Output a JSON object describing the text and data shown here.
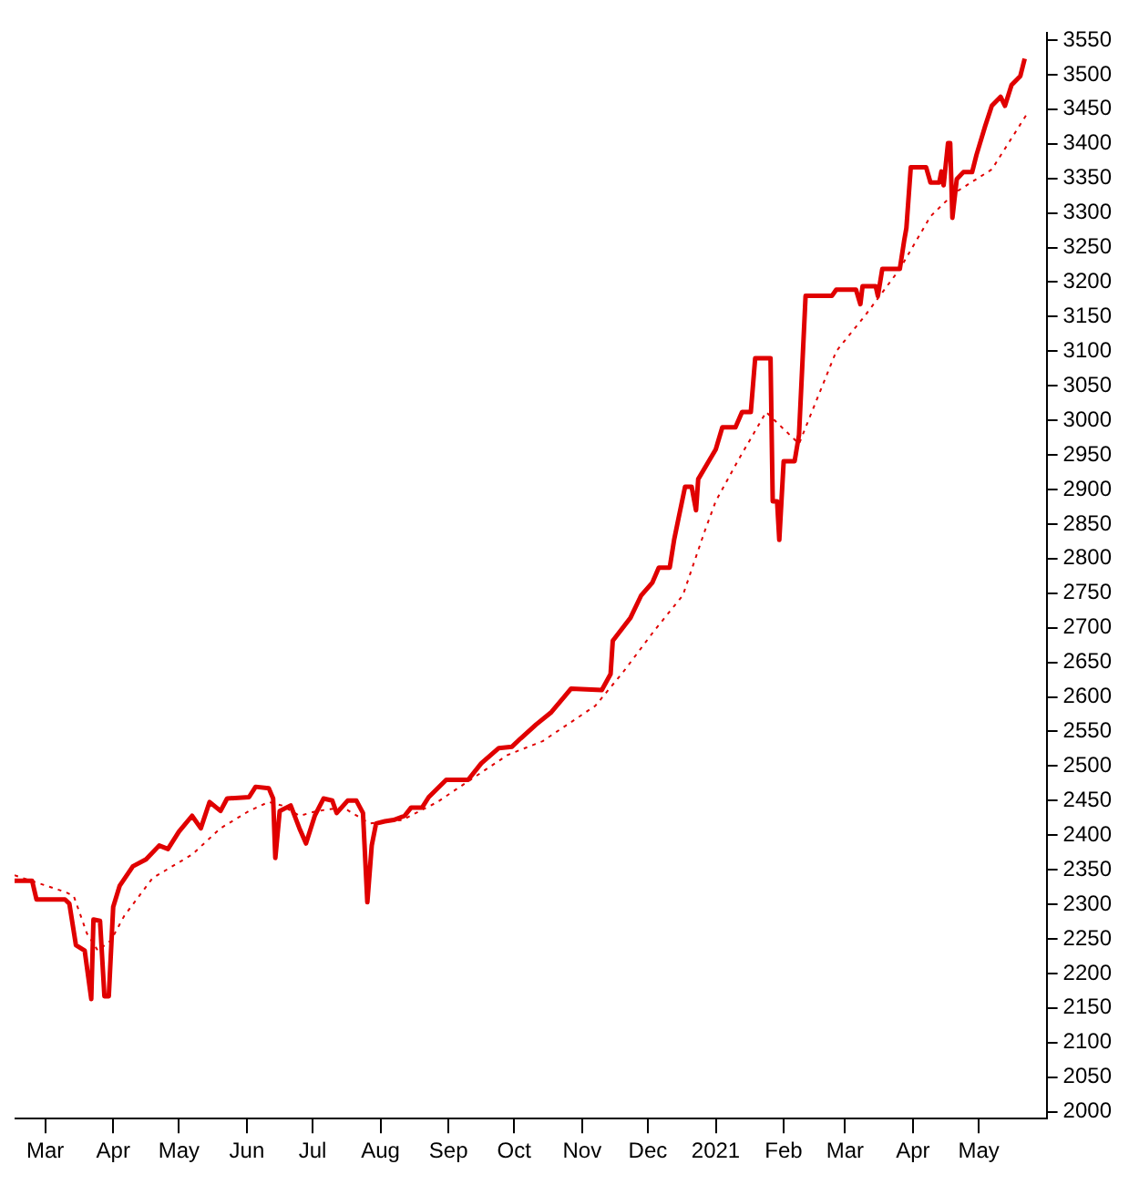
{
  "chart_data": {
    "type": "line",
    "xlim": [
      "2020-02-16",
      "2021-06-01"
    ],
    "xticks": [
      {
        "value": "2020-03-01",
        "label": "Mar"
      },
      {
        "value": "2020-04-01",
        "label": "Apr"
      },
      {
        "value": "2020-05-01",
        "label": "May"
      },
      {
        "value": "2020-06-01",
        "label": "Jun"
      },
      {
        "value": "2020-07-01",
        "label": "Jul"
      },
      {
        "value": "2020-08-01",
        "label": "Aug"
      },
      {
        "value": "2020-09-01",
        "label": "Sep"
      },
      {
        "value": "2020-10-01",
        "label": "Oct"
      },
      {
        "value": "2020-11-01",
        "label": "Nov"
      },
      {
        "value": "2020-12-01",
        "label": "Dec"
      },
      {
        "value": "2021-01-01",
        "label": "2021"
      },
      {
        "value": "2021-02-01",
        "label": "Feb"
      },
      {
        "value": "2021-03-01",
        "label": "Mar"
      },
      {
        "value": "2021-04-01",
        "label": "Apr"
      },
      {
        "value": "2021-05-01",
        "label": "May"
      }
    ],
    "ylim": [
      1990,
      3560
    ],
    "yticks": [
      2000,
      2050,
      2100,
      2150,
      2200,
      2250,
      2300,
      2350,
      2400,
      2450,
      2500,
      2550,
      2600,
      2650,
      2700,
      2750,
      2800,
      2850,
      2900,
      2950,
      3000,
      3050,
      3100,
      3150,
      3200,
      3250,
      3300,
      3350,
      3400,
      3450,
      3500,
      3550
    ],
    "grid": false,
    "legend": false,
    "series": [
      {
        "color": "#e00000",
        "line_style": "solid",
        "x": [
          "2020-02-16",
          "2020-02-24",
          "2020-02-26",
          "2020-03-10",
          "2020-03-12",
          "2020-03-15",
          "2020-03-19",
          "2020-03-22",
          "2020-03-23",
          "2020-03-26",
          "2020-03-28",
          "2020-03-30",
          "2020-04-01",
          "2020-04-04",
          "2020-04-10",
          "2020-04-16",
          "2020-04-22",
          "2020-04-26",
          "2020-05-01",
          "2020-05-07",
          "2020-05-11",
          "2020-05-15",
          "2020-05-20",
          "2020-05-23",
          "2020-06-02",
          "2020-06-05",
          "2020-06-11",
          "2020-06-13",
          "2020-06-14",
          "2020-06-16",
          "2020-06-21",
          "2020-06-25",
          "2020-06-28",
          "2020-07-02",
          "2020-07-06",
          "2020-07-10",
          "2020-07-12",
          "2020-07-17",
          "2020-07-21",
          "2020-07-24",
          "2020-07-26",
          "2020-07-28",
          "2020-07-30",
          "2020-08-03",
          "2020-08-07",
          "2020-08-12",
          "2020-08-15",
          "2020-08-20",
          "2020-08-23",
          "2020-08-31",
          "2020-09-10",
          "2020-09-16",
          "2020-09-24",
          "2020-09-30",
          "2020-10-04",
          "2020-10-11",
          "2020-10-18",
          "2020-10-27",
          "2020-11-10",
          "2020-11-14",
          "2020-11-15",
          "2020-11-23",
          "2020-11-28",
          "2020-12-03",
          "2020-12-06",
          "2020-12-11",
          "2020-12-13",
          "2020-12-15",
          "2020-12-18",
          "2020-12-21",
          "2020-12-23",
          "2020-12-24",
          "2021-01-01",
          "2021-01-04",
          "2021-01-10",
          "2021-01-13",
          "2021-01-17",
          "2021-01-19",
          "2021-01-26",
          "2021-01-27",
          "2021-01-29",
          "2021-01-30",
          "2021-02-01",
          "2021-02-06",
          "2021-02-08",
          "2021-02-11",
          "2021-02-23",
          "2021-02-25",
          "2021-03-06",
          "2021-03-08",
          "2021-03-09",
          "2021-03-15",
          "2021-03-16",
          "2021-03-18",
          "2021-03-26",
          "2021-03-28",
          "2021-03-29",
          "2021-03-31",
          "2021-04-07",
          "2021-04-09",
          "2021-04-13",
          "2021-04-14",
          "2021-04-15",
          "2021-04-17",
          "2021-04-18",
          "2021-04-19",
          "2021-04-21",
          "2021-04-24",
          "2021-04-28",
          "2021-04-30",
          "2021-05-04",
          "2021-05-07",
          "2021-05-11",
          "2021-05-13",
          "2021-05-16",
          "2021-05-20",
          "2021-05-22"
        ],
        "values": [
          2334,
          2334,
          2307,
          2307,
          2301,
          2241,
          2233,
          2163,
          2278,
          2276,
          2167,
          2167,
          2296,
          2327,
          2355,
          2365,
          2385,
          2380,
          2405,
          2428,
          2410,
          2448,
          2435,
          2453,
          2455,
          2470,
          2468,
          2453,
          2367,
          2435,
          2443,
          2410,
          2388,
          2428,
          2453,
          2450,
          2432,
          2450,
          2450,
          2432,
          2303,
          2385,
          2417,
          2420,
          2422,
          2428,
          2440,
          2440,
          2455,
          2480,
          2480,
          2504,
          2526,
          2528,
          2540,
          2560,
          2578,
          2612,
          2610,
          2633,
          2681,
          2714,
          2747,
          2765,
          2787,
          2787,
          2827,
          2858,
          2904,
          2904,
          2870,
          2915,
          2958,
          2990,
          2990,
          3012,
          3012,
          3090,
          3090,
          2883,
          2883,
          2827,
          2941,
          2941,
          2979,
          3180,
          3180,
          3189,
          3189,
          3168,
          3194,
          3194,
          3180,
          3219,
          3219,
          3260,
          3278,
          3366,
          3366,
          3344,
          3344,
          3360,
          3340,
          3401,
          3401,
          3293,
          3349,
          3359,
          3359,
          3384,
          3426,
          3455,
          3468,
          3455,
          3485,
          3498,
          3523
        ]
      },
      {
        "color": "#e00000",
        "line_style": "dotted",
        "x": [
          "2020-02-16",
          "2020-03-10",
          "2020-03-14",
          "2020-03-20",
          "2020-03-25",
          "2020-03-31",
          "2020-04-06",
          "2020-04-19",
          "2020-05-07",
          "2020-05-20",
          "2020-06-02",
          "2020-06-11",
          "2020-06-17",
          "2020-06-25",
          "2020-07-03",
          "2020-07-15",
          "2020-07-27",
          "2020-08-11",
          "2020-08-27",
          "2020-09-11",
          "2020-09-28",
          "2020-10-14",
          "2020-11-07",
          "2020-11-20",
          "2020-12-04",
          "2020-12-17",
          "2020-12-27",
          "2021-01-01",
          "2021-01-11",
          "2021-01-24",
          "2021-02-08",
          "2021-02-25",
          "2021-03-10",
          "2021-03-26",
          "2021-04-09",
          "2021-04-20",
          "2021-05-07",
          "2021-05-23"
        ],
        "values": [
          2342,
          2318,
          2312,
          2258,
          2233,
          2248,
          2283,
          2338,
          2372,
          2410,
          2435,
          2448,
          2443,
          2428,
          2435,
          2440,
          2417,
          2422,
          2448,
          2480,
          2516,
          2536,
          2587,
          2637,
          2696,
          2747,
          2840,
          2883,
          2941,
          3012,
          2966,
          3100,
          3151,
          3219,
          3295,
          3329,
          3363,
          3443
        ]
      }
    ]
  }
}
